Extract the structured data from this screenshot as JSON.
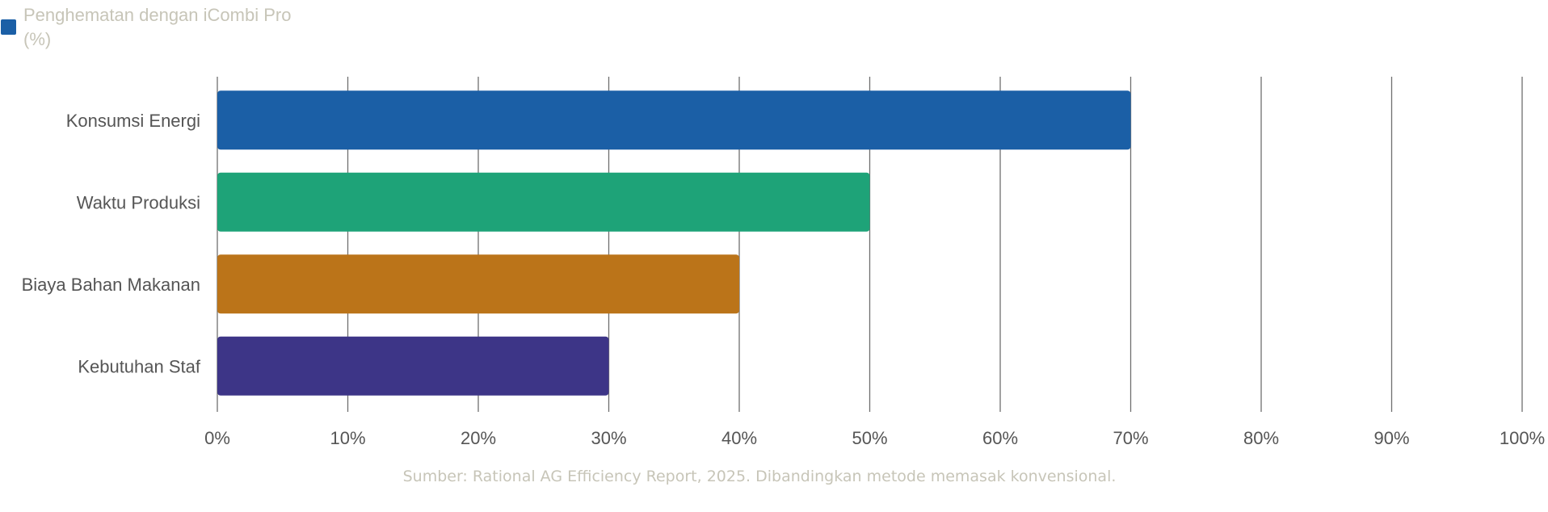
{
  "chart_data": {
    "type": "bar",
    "orientation": "horizontal",
    "categories": [
      "Konsumsi Energi",
      "Waktu Produksi",
      "Biaya Bahan Makanan",
      "Kebutuhan Staf"
    ],
    "series": [
      {
        "name": "Penghematan dengan iCombi Pro (%)",
        "values": [
          70,
          50,
          40,
          30
        ]
      }
    ],
    "bar_colors": [
      "#1b5fa6",
      "#1ea378",
      "#bb7419",
      "#3d3587"
    ],
    "legend_color": "#1b5fa6",
    "legend_lines": [
      "Penghematan dengan iCombi Pro",
      "(%)"
    ],
    "legend_position": "top-left",
    "xlim": [
      0,
      100
    ],
    "xticks": [
      0,
      10,
      20,
      30,
      40,
      50,
      60,
      70,
      80,
      90,
      100
    ],
    "xtick_labels": [
      "0%",
      "10%",
      "20%",
      "30%",
      "40%",
      "50%",
      "60%",
      "70%",
      "80%",
      "90%",
      "100%"
    ],
    "grid": true,
    "source": "Sumber: Rational AG Efficiency Report, 2025. Dibandingkan metode memasak konvensional."
  }
}
